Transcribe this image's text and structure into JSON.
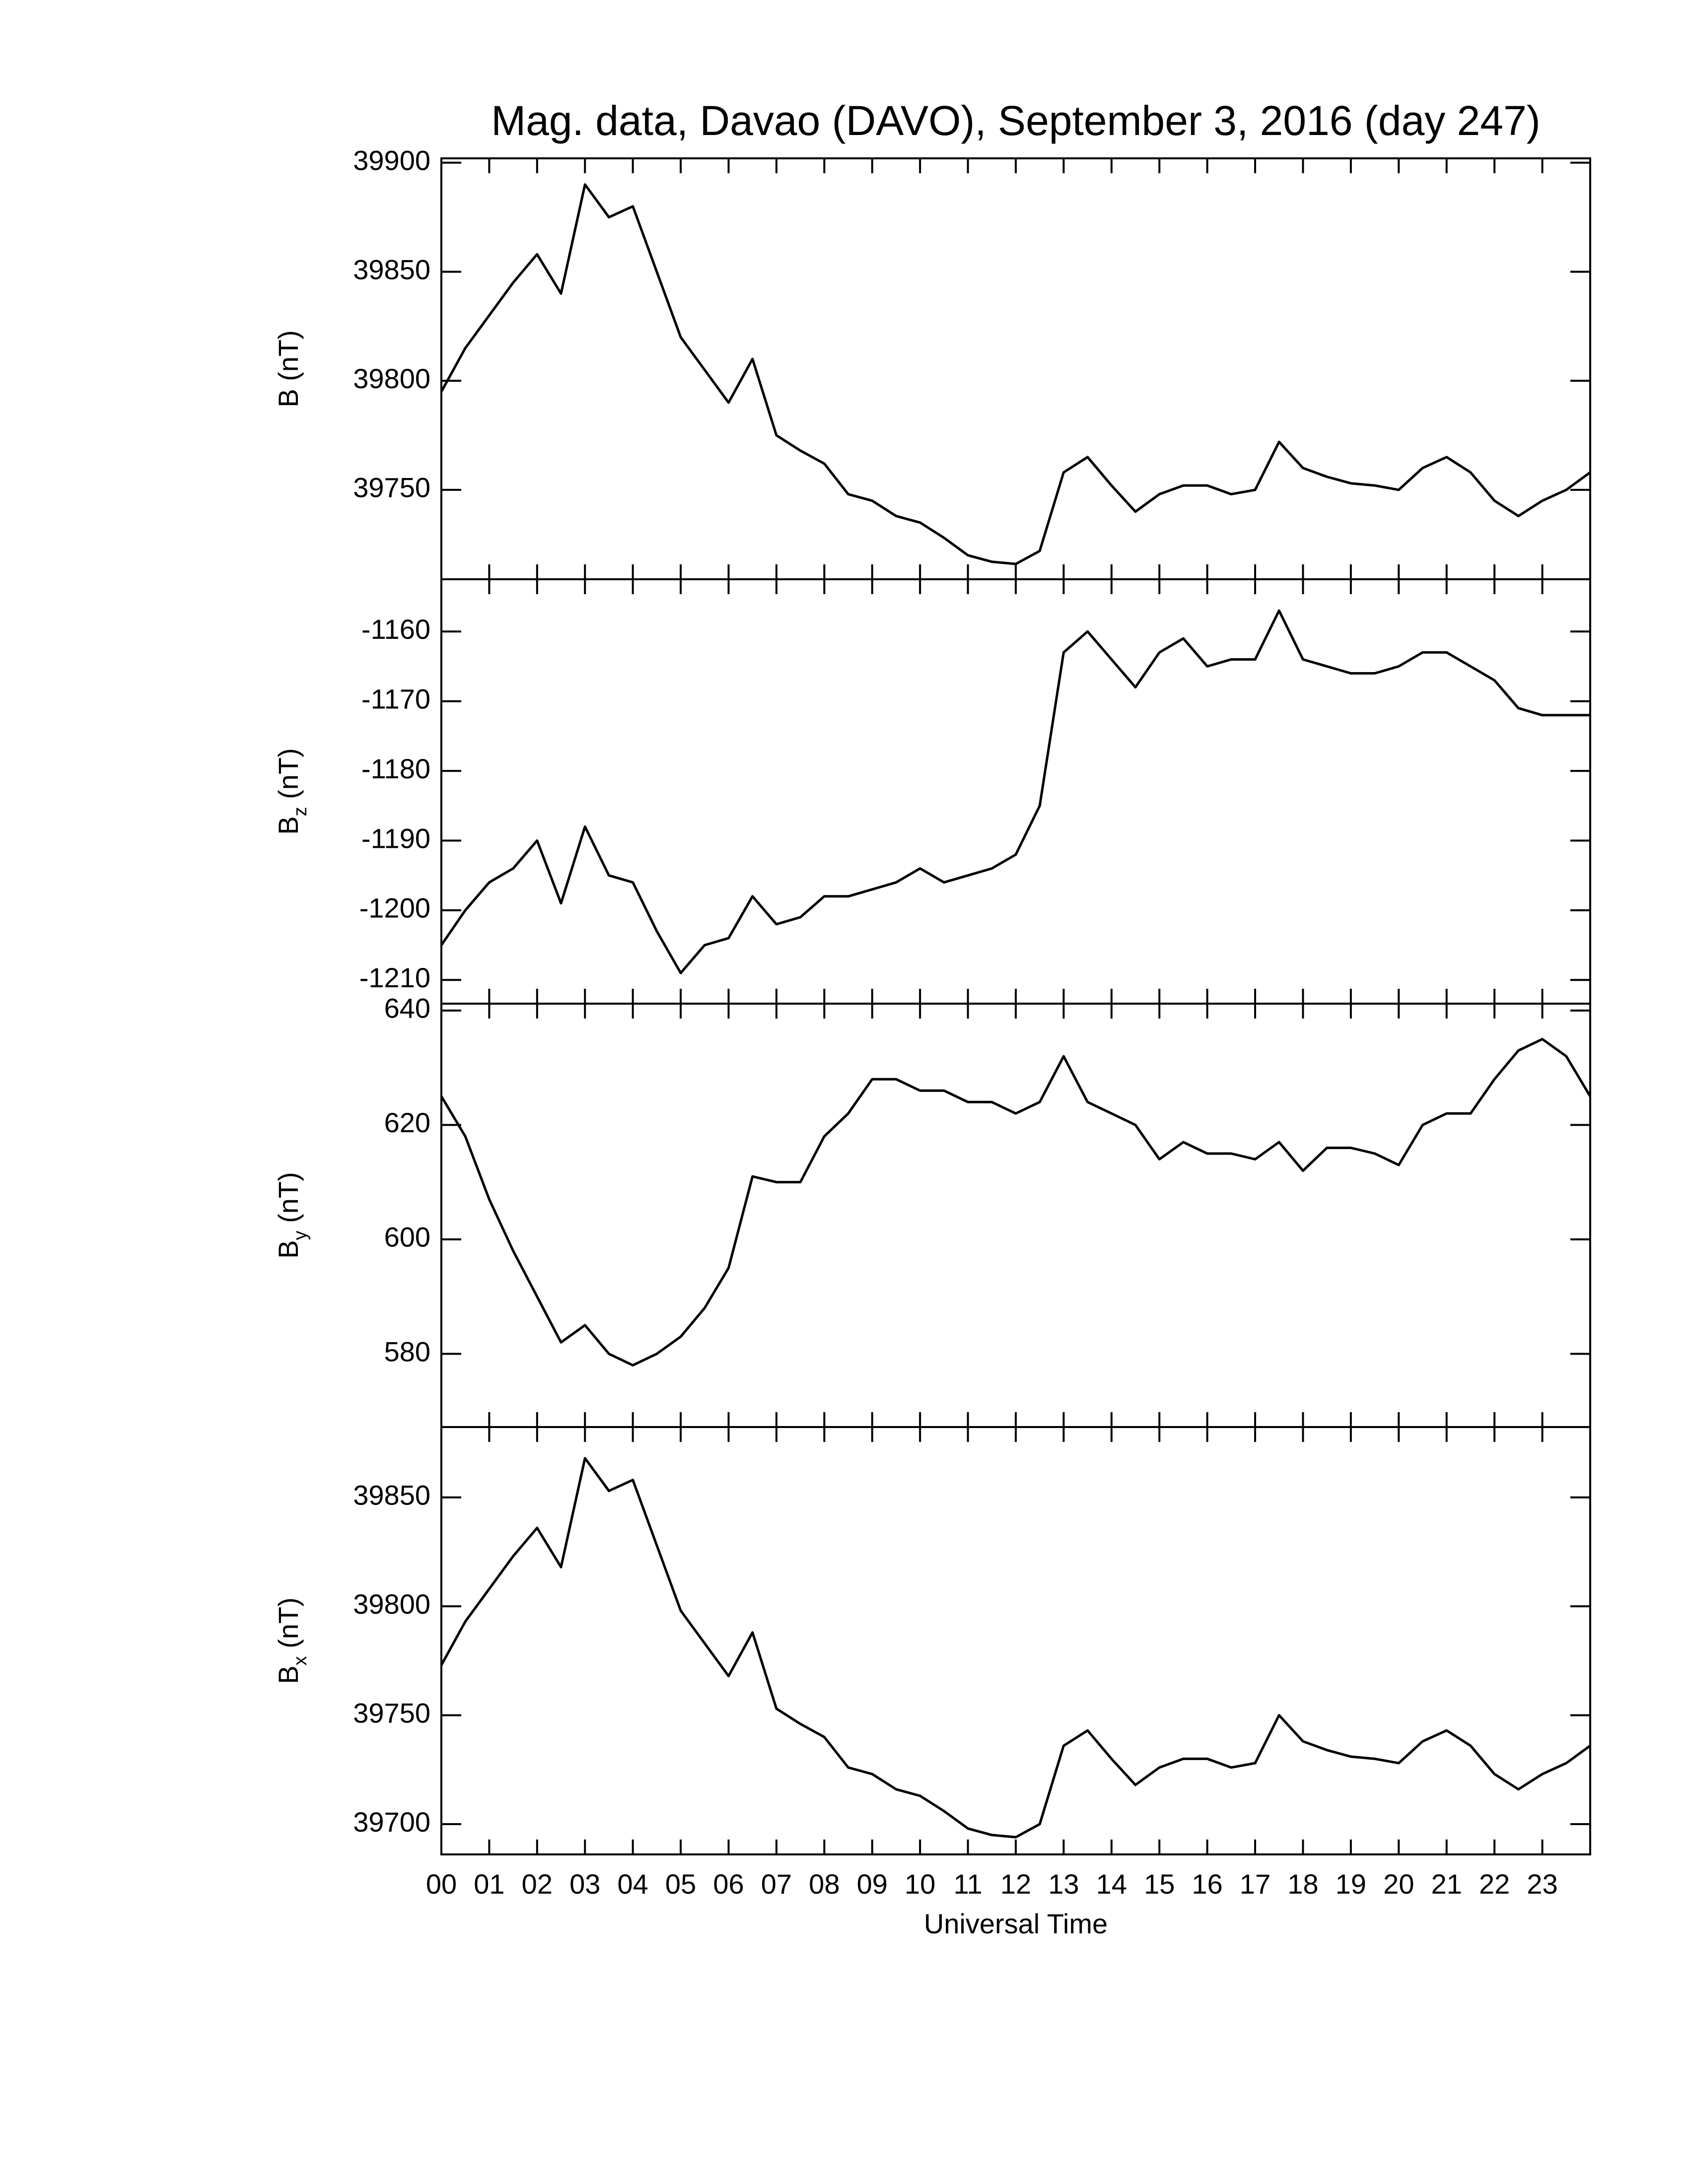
{
  "chart_data": [
    {
      "type": "line",
      "title": "Mag. data, Davao (DAVO), September 3, 2016 (day 247)",
      "ylabel": "B",
      "ylabel_unit": "(nT)",
      "color": "#000000",
      "x": [
        0,
        0.5,
        1,
        1.5,
        2,
        2.5,
        3,
        3.5,
        4,
        4.5,
        5,
        5.5,
        6,
        6.5,
        7,
        7.5,
        8,
        8.5,
        9,
        9.5,
        10,
        10.5,
        11,
        11.5,
        12,
        12.5,
        13,
        13.5,
        14,
        14.5,
        15,
        15.5,
        16,
        16.5,
        17,
        17.5,
        18,
        18.5,
        19,
        19.5,
        20,
        20.5,
        21,
        21.5,
        22,
        22.5,
        23,
        23.5,
        24
      ],
      "values": [
        39795,
        39815,
        39830,
        39845,
        39858,
        39840,
        39890,
        39875,
        39880,
        39850,
        39820,
        39805,
        39790,
        39810,
        39775,
        39768,
        39762,
        39748,
        39745,
        39738,
        39735,
        39728,
        39720,
        39717,
        39716,
        39722,
        39758,
        39765,
        39752,
        39740,
        39748,
        39752,
        39752,
        39748,
        39750,
        39772,
        39760,
        39756,
        39753,
        39752,
        39750,
        39760,
        39765,
        39758,
        39745,
        39738,
        39745,
        39750,
        39758
      ],
      "ylim": [
        39709,
        39902
      ],
      "yticks": [
        39750,
        39800,
        39850,
        39900
      ]
    },
    {
      "type": "line",
      "ylabel": "B",
      "ylabel_sub": "z",
      "ylabel_unit": "(nT)",
      "color": "#000000",
      "x": [
        0,
        0.5,
        1,
        1.5,
        2,
        2.5,
        3,
        3.5,
        4,
        4.5,
        5,
        5.5,
        6,
        6.5,
        7,
        7.5,
        8,
        8.5,
        9,
        9.5,
        10,
        10.5,
        11,
        11.5,
        12,
        12.5,
        13,
        13.5,
        14,
        14.5,
        15,
        15.5,
        16,
        16.5,
        17,
        17.5,
        18,
        18.5,
        19,
        19.5,
        20,
        20.5,
        21,
        21.5,
        22,
        22.5,
        23,
        23.5,
        24
      ],
      "values": [
        -1205,
        -1200,
        -1196,
        -1194,
        -1190,
        -1199,
        -1188,
        -1195,
        -1196,
        -1203,
        -1209,
        -1205,
        -1204,
        -1198,
        -1202,
        -1201,
        -1198,
        -1198,
        -1197,
        -1196,
        -1194,
        -1196,
        -1195,
        -1194,
        -1192,
        -1185,
        -1163,
        -1160,
        -1164,
        -1168,
        -1163,
        -1161,
        -1165,
        -1164,
        -1164,
        -1157,
        -1164,
        -1165,
        -1166,
        -1166,
        -1165,
        -1163,
        -1163,
        -1165,
        -1167,
        -1171,
        -1172,
        -1172,
        -1172
      ],
      "ylim": [
        -1213.4,
        -1152.5
      ],
      "yticks": [
        -1210,
        -1200,
        -1190,
        -1180,
        -1170,
        -1160
      ]
    },
    {
      "type": "line",
      "ylabel": "B",
      "ylabel_sub": "y",
      "ylabel_unit": "(nT)",
      "color": "#000000",
      "x": [
        0,
        0.5,
        1,
        1.5,
        2,
        2.5,
        3,
        3.5,
        4,
        4.5,
        5,
        5.5,
        6,
        6.5,
        7,
        7.5,
        8,
        8.5,
        9,
        9.5,
        10,
        10.5,
        11,
        11.5,
        12,
        12.5,
        13,
        13.5,
        14,
        14.5,
        15,
        15.5,
        16,
        16.5,
        17,
        17.5,
        18,
        18.5,
        19,
        19.5,
        20,
        20.5,
        21,
        21.5,
        22,
        22.5,
        23,
        23.5,
        24
      ],
      "values": [
        625,
        618,
        607,
        598,
        590,
        582,
        585,
        580,
        578,
        580,
        583,
        588,
        595,
        611,
        610,
        610,
        618,
        622,
        628,
        628,
        626,
        626,
        624,
        624,
        622,
        624,
        632,
        624,
        622,
        620,
        614,
        617,
        615,
        615,
        614,
        617,
        612,
        616,
        616,
        615,
        613,
        620,
        622,
        622,
        628,
        633,
        635,
        632,
        625
      ],
      "ylim": [
        567.2,
        641.2
      ],
      "yticks": [
        580,
        600,
        620,
        640
      ]
    },
    {
      "type": "line",
      "ylabel": "B",
      "ylabel_sub": "x",
      "ylabel_unit": "(nT)",
      "xlabel": "Universal Time",
      "color": "#000000",
      "x": [
        0,
        0.5,
        1,
        1.5,
        2,
        2.5,
        3,
        3.5,
        4,
        4.5,
        5,
        5.5,
        6,
        6.5,
        7,
        7.5,
        8,
        8.5,
        9,
        9.5,
        10,
        10.5,
        11,
        11.5,
        12,
        12.5,
        13,
        13.5,
        14,
        14.5,
        15,
        15.5,
        16,
        16.5,
        17,
        17.5,
        18,
        18.5,
        19,
        19.5,
        20,
        20.5,
        21,
        21.5,
        22,
        22.5,
        23,
        23.5,
        24
      ],
      "values": [
        39773,
        39793,
        39808,
        39823,
        39836,
        39818,
        39868,
        39853,
        39858,
        39828,
        39798,
        39783,
        39768,
        39788,
        39753,
        39746,
        39740,
        39726,
        39723,
        39716,
        39713,
        39706,
        39698,
        39695,
        39694,
        39700,
        39736,
        39743,
        39730,
        39718,
        39726,
        39730,
        39730,
        39726,
        39728,
        39750,
        39738,
        39734,
        39731,
        39730,
        39728,
        39738,
        39743,
        39736,
        39723,
        39716,
        39723,
        39728,
        39736
      ],
      "ylim": [
        39686.1,
        39882.3
      ],
      "yticks": [
        39700,
        39750,
        39800,
        39850
      ],
      "xlim": [
        0,
        24
      ],
      "xticks": [
        {
          "value": 0,
          "label": "00"
        },
        {
          "value": 1,
          "label": "01"
        },
        {
          "value": 2,
          "label": "02"
        },
        {
          "value": 3,
          "label": "03"
        },
        {
          "value": 4,
          "label": "04"
        },
        {
          "value": 5,
          "label": "05"
        },
        {
          "value": 6,
          "label": "06"
        },
        {
          "value": 7,
          "label": "07"
        },
        {
          "value": 8,
          "label": "08"
        },
        {
          "value": 9,
          "label": "09"
        },
        10,
        11,
        12,
        13,
        14,
        15,
        16,
        17,
        18,
        19,
        20,
        21,
        22,
        23
      ]
    }
  ]
}
